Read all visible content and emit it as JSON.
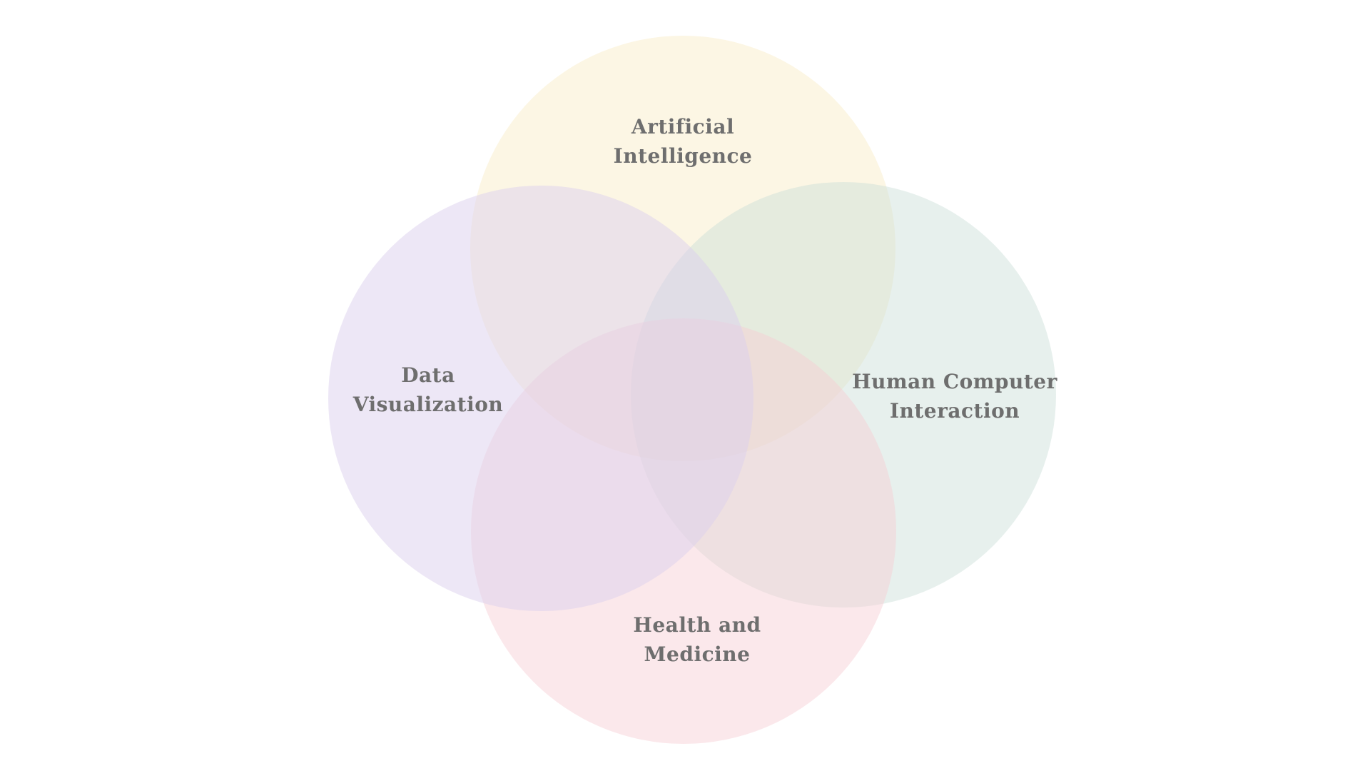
{
  "diagram": {
    "type": "venn",
    "sets": [
      {
        "id": "ai",
        "lines": [
          "Artificial",
          "Intelligence"
        ],
        "color": "#fcf6e4"
      },
      {
        "id": "hci",
        "lines": [
          "Human Computer",
          "Interaction"
        ],
        "color": "#e5efeb"
      },
      {
        "id": "health",
        "lines": [
          "Health and",
          "Medicine"
        ],
        "color": "#fae6e9"
      },
      {
        "id": "dataviz",
        "lines": [
          "Data",
          "Visualization"
        ],
        "color": "#ece5f4"
      }
    ]
  }
}
